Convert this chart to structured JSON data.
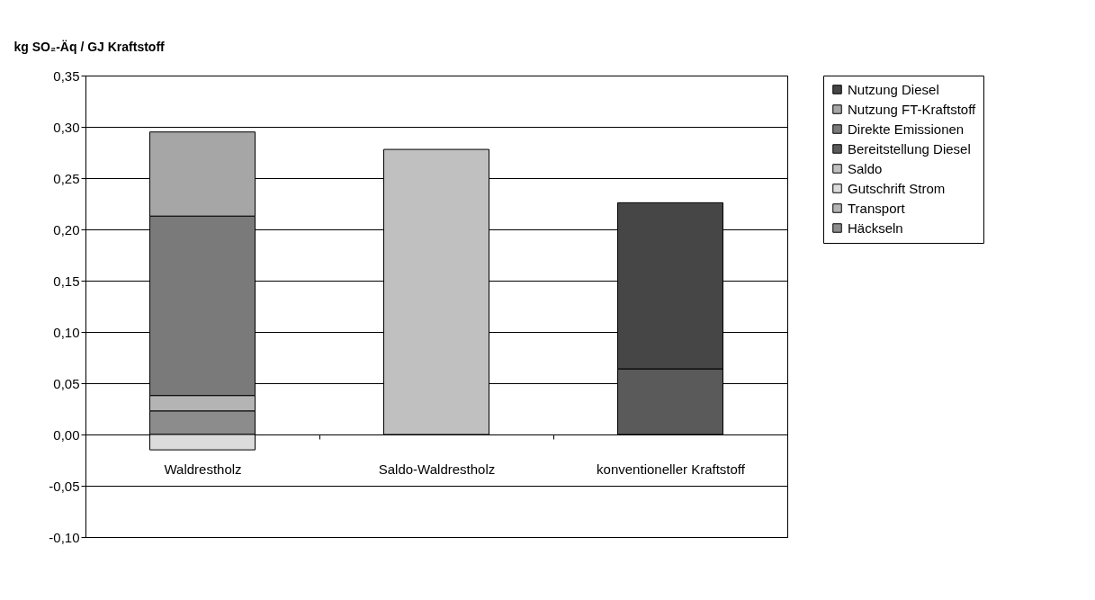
{
  "chart_data": {
    "type": "bar",
    "stacked": true,
    "ylabel": "kg SO₂-Äq / GJ Kraftstoff",
    "categories": [
      "Waldrestholz",
      "Saldo-Waldrestholz",
      "konventioneller Kraftstoff"
    ],
    "series": [
      {
        "name": "Häckseln",
        "color": "#8c8c8c",
        "values": [
          0.023,
          null,
          null
        ]
      },
      {
        "name": "Transport",
        "color": "#b4b4b4",
        "values": [
          0.015,
          null,
          null
        ]
      },
      {
        "name": "Gutschrift Strom",
        "color": "#dcdcdc",
        "values": [
          -0.015,
          null,
          null
        ]
      },
      {
        "name": "Saldo",
        "color": "#c0c0c0",
        "values": [
          null,
          0.278,
          null
        ]
      },
      {
        "name": "Bereitstellung Diesel",
        "color": "#5a5a5a",
        "values": [
          null,
          null,
          0.064
        ]
      },
      {
        "name": "Direkte Emissionen",
        "color": "#7a7a7a",
        "values": [
          0.175,
          null,
          null
        ]
      },
      {
        "name": "Nutzung FT-Kraftstoff",
        "color": "#a6a6a6",
        "values": [
          0.082,
          null,
          null
        ]
      },
      {
        "name": "Nutzung Diesel",
        "color": "#464646",
        "values": [
          null,
          null,
          0.162
        ]
      }
    ],
    "ylim": [
      -0.1,
      0.35
    ],
    "yticks": [
      {
        "value": -0.1,
        "label": "-0,10"
      },
      {
        "value": -0.05,
        "label": "-0,05"
      },
      {
        "value": 0,
        "label": "0,00"
      },
      {
        "value": 0.05,
        "label": "0,05"
      },
      {
        "value": 0.1,
        "label": "0,10"
      },
      {
        "value": 0.15,
        "label": "0,15"
      },
      {
        "value": 0.2,
        "label": "0,20"
      },
      {
        "value": 0.25,
        "label": "0,25"
      },
      {
        "value": 0.3,
        "label": "0,30"
      },
      {
        "value": 0.35,
        "label": "0,35"
      }
    ],
    "grid": "y",
    "legend": "right"
  }
}
